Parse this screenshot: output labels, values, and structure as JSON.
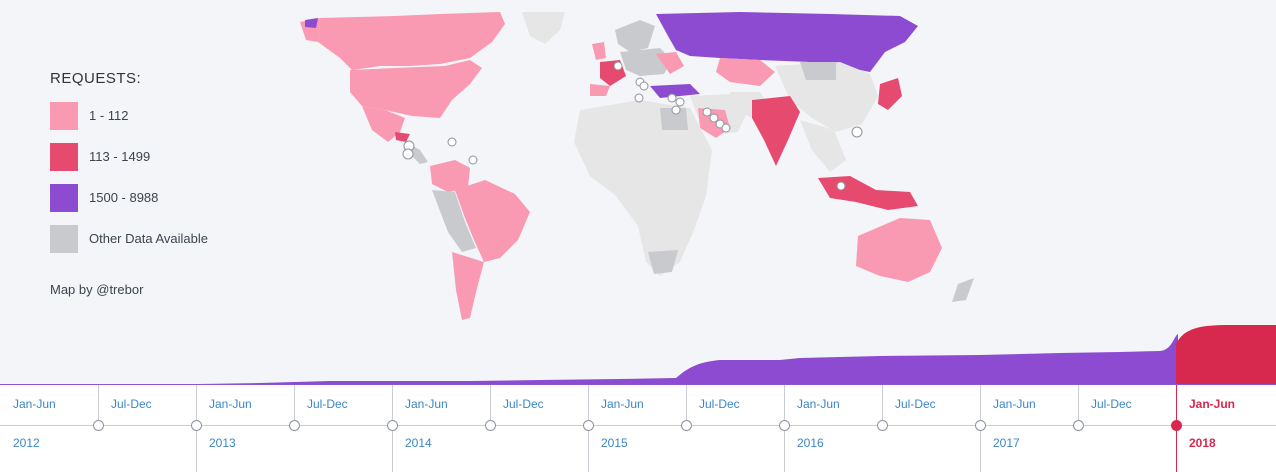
{
  "legend": {
    "title": "REQUESTS:",
    "items": [
      {
        "label": "1 - 112",
        "color": "#f99ab2"
      },
      {
        "label": "113 - 1499",
        "color": "#e64a6f"
      },
      {
        "label": "1500 - 8988",
        "color": "#8c4bd1"
      },
      {
        "label": "Other Data Available",
        "color": "#c8cacd"
      }
    ]
  },
  "credit": "Map by @trebor",
  "colors": {
    "no_data": "#e6e6e6",
    "trend_fill": "#8c4bd1",
    "active_fill": "#d7284e",
    "accent_link": "#3b86c6"
  },
  "timeline": {
    "periods": [
      {
        "half": "Jan-Jun",
        "year": "2012"
      },
      {
        "half": "Jul-Dec",
        "year": ""
      },
      {
        "half": "Jan-Jun",
        "year": "2013"
      },
      {
        "half": "Jul-Dec",
        "year": ""
      },
      {
        "half": "Jan-Jun",
        "year": "2014"
      },
      {
        "half": "Jul-Dec",
        "year": ""
      },
      {
        "half": "Jan-Jun",
        "year": "2015"
      },
      {
        "half": "Jul-Dec",
        "year": ""
      },
      {
        "half": "Jan-Jun",
        "year": "2016"
      },
      {
        "half": "Jul-Dec",
        "year": ""
      },
      {
        "half": "Jan-Jun",
        "year": "2017"
      },
      {
        "half": "Jul-Dec",
        "year": ""
      },
      {
        "half": "Jan-Jun",
        "year": "2018"
      }
    ],
    "active_index": 12
  }
}
